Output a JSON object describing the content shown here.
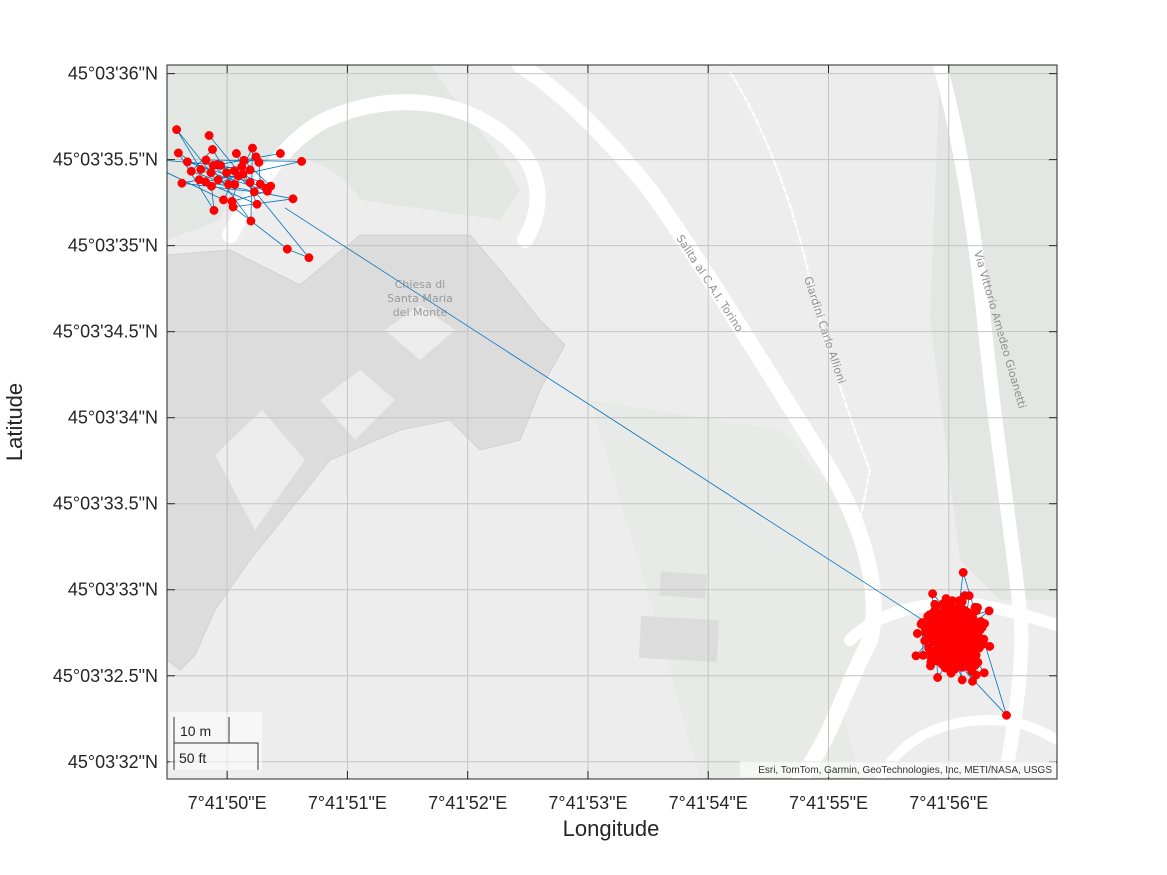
{
  "chart_data": {
    "type": "scatter",
    "xlabel": "Longitude",
    "ylabel": "Latitude",
    "x_ticks": [
      "7°41'50\"E",
      "7°41'51\"E",
      "7°41'52\"E",
      "7°41'53\"E",
      "7°41'54\"E",
      "7°41'55\"E",
      "7°41'56\"E"
    ],
    "y_ticks": [
      "45°03'36\"N",
      "45°03'35.5\"N",
      "45°03'35\"N",
      "45°03'34.5\"N",
      "45°03'34\"N",
      "45°03'33.5\"N",
      "45°03'33\"N",
      "45°03'32.5\"N",
      "45°03'32\"N"
    ],
    "x_tick_seconds": [
      50,
      51,
      52,
      53,
      54,
      55,
      56
    ],
    "y_tick_seconds": [
      36,
      35.5,
      35,
      34.5,
      34,
      33.5,
      33,
      32.5,
      32
    ],
    "xlim_seconds": [
      49.5,
      56.9
    ],
    "ylim_seconds": [
      31.9,
      36.05
    ],
    "grid": true,
    "marker_color": "#ff0000",
    "line_color": "#0072bd",
    "clusters": [
      {
        "center_lon_seconds": 49.98,
        "center_lat_seconds": 35.4,
        "spread_lon_seconds": 0.28,
        "spread_lat_seconds": 0.12,
        "count": 45,
        "outliers": [
          [
            50.5,
            34.98
          ],
          [
            50.68,
            34.93
          ],
          [
            49.85,
            35.64
          ]
        ]
      },
      {
        "center_lon_seconds": 56.04,
        "center_lat_seconds": 32.72,
        "spread_lon_seconds": 0.12,
        "spread_lat_seconds": 0.1,
        "count": 320,
        "outliers": [
          [
            56.12,
            33.1
          ],
          [
            56.48,
            32.27
          ],
          [
            55.77,
            32.8
          ]
        ]
      }
    ],
    "connector": [
      [
        50.48,
        35.22
      ],
      [
        55.88,
        32.78
      ]
    ]
  },
  "basemap": {
    "place_label_lines": [
      "Chiesa di",
      "Santa Maria",
      "del Monte"
    ],
    "road_labels": [
      "Salita al C.A.I. Torino",
      "Giardini Carlo Allioni",
      "Via Vittorio Amedeo Gioanetti"
    ],
    "attribution": "Esri, TomTom, Garmin, GeoTechnologies, Inc, METI/NASA, USGS",
    "colors": {
      "land": "#ededed",
      "park": "#e3e7e3",
      "building": "#dcdcdc",
      "road": "#ffffff"
    }
  },
  "scalebar": {
    "metric": "10 m",
    "imperial": "50 ft"
  }
}
